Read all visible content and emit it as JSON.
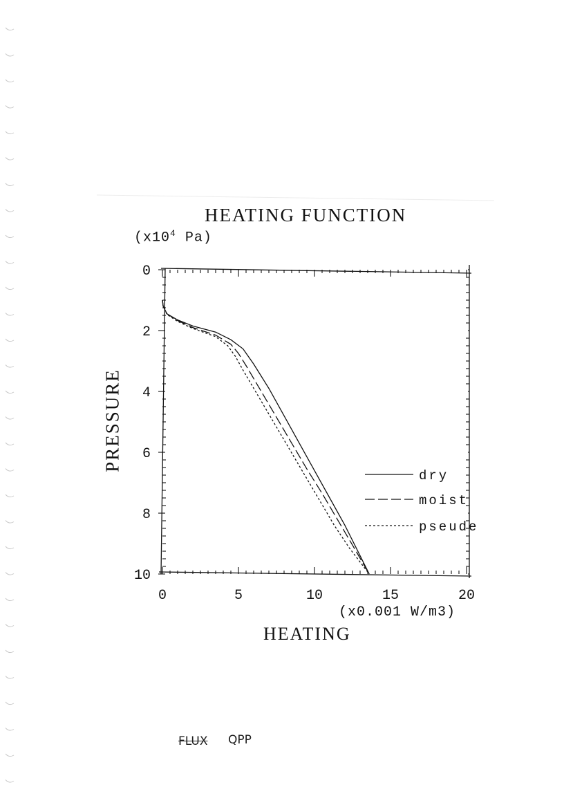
{
  "chart_data": {
    "type": "line",
    "title": "HEATING FUNCTION",
    "xlabel": "HEATING",
    "xunit": "(x0.001 W/m3)",
    "ylabel": "PRESSURE",
    "yunit_prefix": "(x10",
    "yunit_exp": "4",
    "yunit_suffix": " Pa)",
    "xlim": [
      0,
      20
    ],
    "ylim": [
      0,
      10
    ],
    "y_inverted": true,
    "x_ticks": [
      "0",
      "5",
      "10",
      "15",
      "20"
    ],
    "y_ticks": [
      "0",
      "2",
      "4",
      "6",
      "8",
      "10"
    ],
    "x_tick_values": [
      0,
      5,
      10,
      15,
      20
    ],
    "y_tick_values": [
      0,
      2,
      4,
      6,
      8,
      10
    ],
    "grid": false,
    "legend_position": "right",
    "series": [
      {
        "name": "dry",
        "style": "solid",
        "x": [
          0.0,
          0.05,
          0.3,
          1.0,
          2.0,
          3.5,
          4.5,
          5.3,
          6.0,
          7.0,
          8.0,
          9.0,
          10.0,
          11.0,
          12.0,
          13.0,
          13.6
        ],
        "y": [
          1.0,
          1.2,
          1.45,
          1.65,
          1.85,
          2.05,
          2.3,
          2.6,
          3.1,
          3.9,
          4.8,
          5.7,
          6.6,
          7.5,
          8.4,
          9.4,
          10.0
        ]
      },
      {
        "name": "moist",
        "style": "dashed",
        "x": [
          0.0,
          0.05,
          0.3,
          1.0,
          2.0,
          3.5,
          4.5,
          5.0,
          5.5,
          6.5,
          7.5,
          8.5,
          9.5,
          10.5,
          11.5,
          12.5,
          13.6
        ],
        "y": [
          1.0,
          1.2,
          1.45,
          1.67,
          1.9,
          2.15,
          2.45,
          2.75,
          3.15,
          4.0,
          4.85,
          5.7,
          6.55,
          7.35,
          8.2,
          9.05,
          10.0
        ]
      },
      {
        "name": "pseude",
        "style": "dotted",
        "x": [
          0.0,
          0.05,
          0.3,
          1.0,
          2.0,
          3.5,
          4.3,
          4.8,
          5.3,
          6.3,
          7.3,
          8.3,
          9.3,
          10.3,
          11.3,
          12.3,
          13.6
        ],
        "y": [
          1.0,
          1.2,
          1.47,
          1.7,
          1.93,
          2.2,
          2.5,
          2.85,
          3.3,
          4.15,
          5.0,
          5.85,
          6.7,
          7.55,
          8.4,
          9.15,
          10.0
        ]
      }
    ]
  },
  "handwriting": {
    "crossed_out": "FLUX",
    "note": "QPP"
  }
}
